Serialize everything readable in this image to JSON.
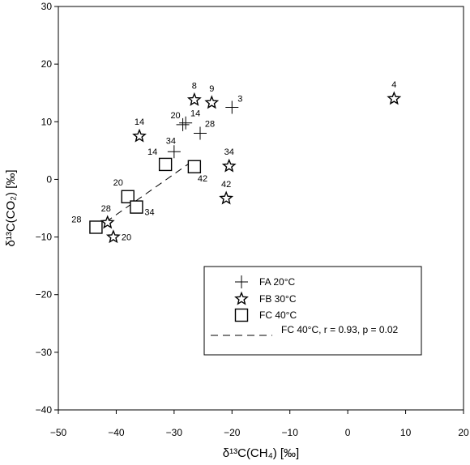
{
  "chart_data": {
    "type": "scatter",
    "xlabel": "δ¹³C(CH₄) [‰]",
    "ylabel": "δ¹³C(CO₂) [‰]",
    "xlim": [
      -50,
      20
    ],
    "ylim": [
      -40,
      30
    ],
    "xticks": [
      "-50",
      "-40",
      "-30",
      "-20",
      "-10",
      "0",
      "10",
      "20"
    ],
    "yticks": [
      "-40",
      "-30",
      "-20",
      "-10",
      "0",
      "10",
      "20",
      "30"
    ],
    "grid": false,
    "legend_position": "bottom-right",
    "series": [
      {
        "name": "FA 20°C",
        "marker": "plus",
        "points": [
          {
            "x": -20.0,
            "y": 12.5,
            "label": "3"
          },
          {
            "x": -28.0,
            "y": 9.8,
            "label": "14"
          },
          {
            "x": -28.5,
            "y": 9.5,
            "label": "20"
          },
          {
            "x": -25.5,
            "y": 8.0,
            "label": "28"
          },
          {
            "x": -30.0,
            "y": 4.8,
            "label": "34"
          }
        ]
      },
      {
        "name": "FB 30°C",
        "marker": "star",
        "points": [
          {
            "x": 8.0,
            "y": 14.0,
            "label": "4"
          },
          {
            "x": -26.5,
            "y": 13.8,
            "label": "8"
          },
          {
            "x": -23.5,
            "y": 13.3,
            "label": "9"
          },
          {
            "x": -36.0,
            "y": 7.5,
            "label": "14"
          },
          {
            "x": -20.5,
            "y": 2.3,
            "label": "34"
          },
          {
            "x": -21.0,
            "y": -3.3,
            "label": "42"
          },
          {
            "x": -41.5,
            "y": -7.5,
            "label": "28"
          },
          {
            "x": -40.5,
            "y": -10.0,
            "label": "20"
          }
        ]
      },
      {
        "name": "FC 40°C",
        "marker": "square",
        "points": [
          {
            "x": -31.5,
            "y": 2.6,
            "label": "14"
          },
          {
            "x": -26.5,
            "y": 2.2,
            "label": "42"
          },
          {
            "x": -38.0,
            "y": -3.0,
            "label": "20"
          },
          {
            "x": -36.5,
            "y": -4.8,
            "label": "34"
          },
          {
            "x": -43.5,
            "y": -8.3,
            "label": "28"
          }
        ]
      }
    ],
    "fit": {
      "name": "FC 40°C, r = 0.93, p = 0.02",
      "x": [
        -43.5,
        -26.5
      ],
      "y": [
        -8.6,
        3.4
      ]
    }
  }
}
